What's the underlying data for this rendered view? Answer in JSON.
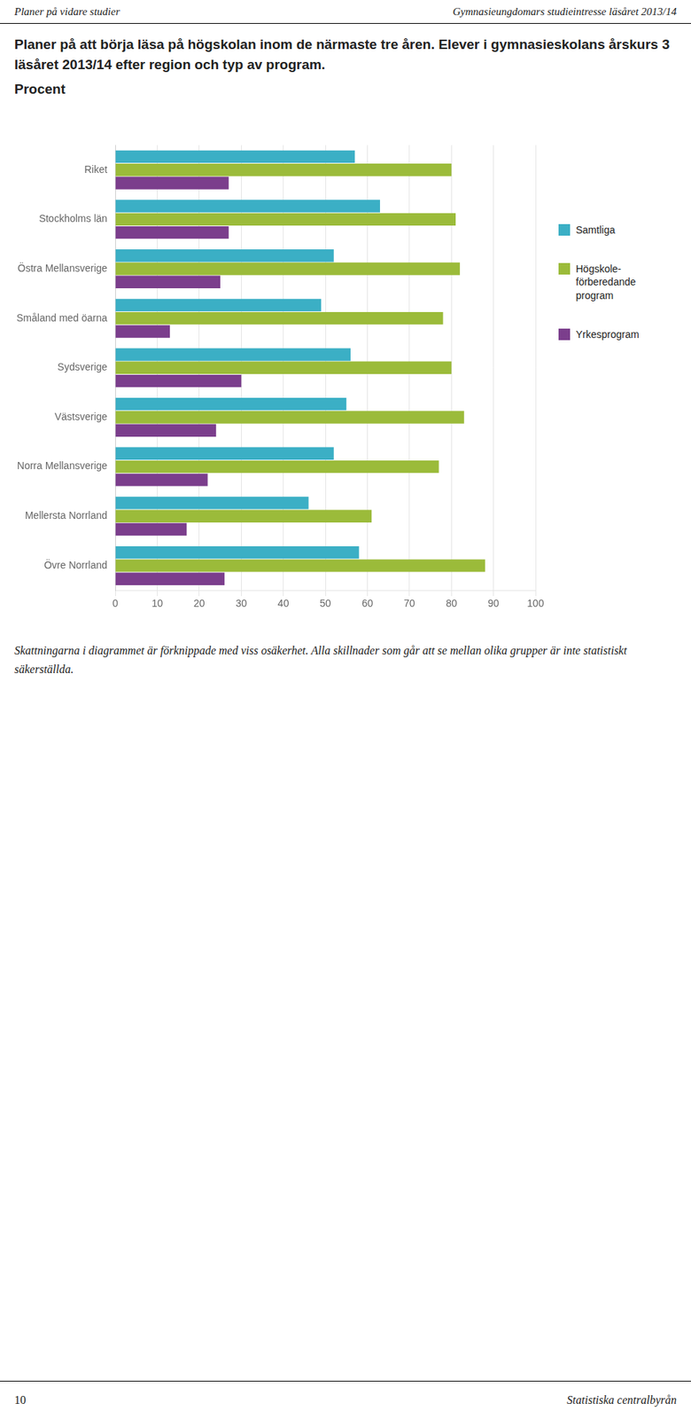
{
  "chart_data": {
    "type": "bar",
    "orientation": "horizontal",
    "title": "Planer på att börja läsa på högskolan inom de närmaste tre åren. Elever i gymnasieskolans årskurs 3 läsåret 2013/14 efter region och typ av program.",
    "subtitle": "Procent",
    "annotations": [
      "Planer på vidare studier",
      "Gymnasieungdomars studieintresse läsåret 2013/14",
      "Skattningarna i diagrammet är förknippade med viss osäkerhet. Alla skillnader som går att se mellan olika grupper är inte statistiskt säkerställda.",
      "10",
      "Statistiska centralbyrån"
    ],
    "categories": [
      "Riket",
      "Stockholms län",
      "Östra Mellansverige",
      "Småland med öarna",
      "Sydsverige",
      "Västsverige",
      "Norra Mellansverige",
      "Mellersta Norrland",
      "Övre Norrland"
    ],
    "series": [
      {
        "name": "Samtliga",
        "color": "#3BAFC5",
        "values": [
          57,
          63,
          52,
          49,
          56,
          55,
          52,
          46,
          58
        ]
      },
      {
        "name": "Högskole-\nförberedande\nprogram",
        "color": "#9BBB3A",
        "values": [
          80,
          81,
          82,
          78,
          80,
          83,
          77,
          61,
          88
        ]
      },
      {
        "name": "Yrkesprogram",
        "color": "#7B3E8C",
        "values": [
          27,
          27,
          25,
          13,
          30,
          24,
          22,
          17,
          26
        ]
      }
    ],
    "xlim": [
      0,
      100
    ],
    "xticks": [
      0,
      10,
      20,
      30,
      40,
      50,
      60,
      70,
      80,
      90,
      100
    ],
    "grid": true,
    "legend": "right"
  }
}
